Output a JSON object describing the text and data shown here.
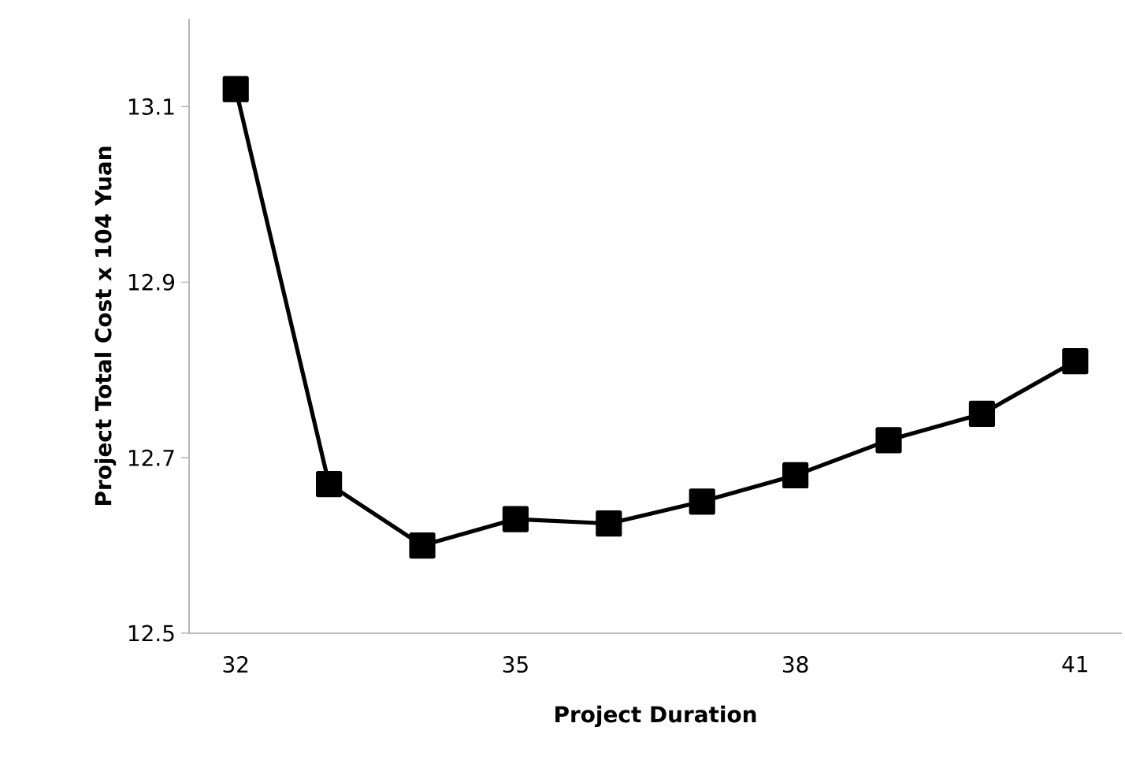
{
  "chart_data": {
    "type": "line",
    "xlabel": "Project Duration",
    "ylabel": "Project Total Cost x 104 Yuan",
    "categories": [
      "32",
      null,
      null,
      "35",
      null,
      null,
      "38",
      null,
      null,
      "41"
    ],
    "series": [
      {
        "color": "#000000",
        "values": [
          13.12,
          12.67,
          12.6,
          12.63,
          12.625,
          12.65,
          12.68,
          12.72,
          12.75,
          12.81
        ]
      }
    ],
    "ylim": [
      12.5,
      13.2
    ],
    "yticks": [
      12.5,
      12.7,
      12.9,
      13.1
    ],
    "marker": "square",
    "line_style": "solid"
  }
}
